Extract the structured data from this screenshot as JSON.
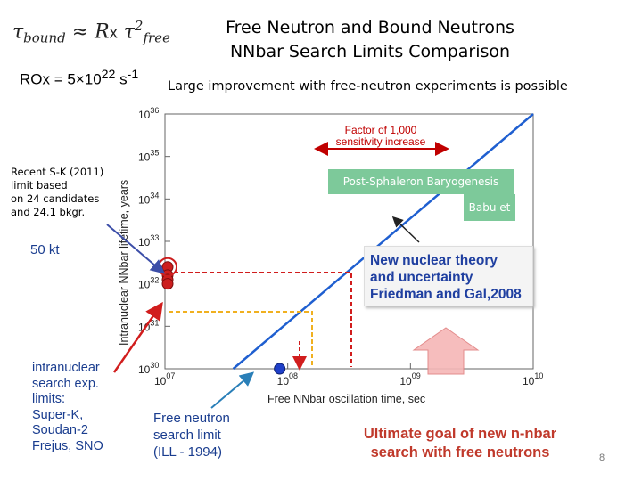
{
  "header": {
    "formula_lhs": "τ",
    "formula_lhs_sub": "bound",
    "formula_mid": "≈",
    "formula_r": "R",
    "formula_x": "x",
    "formula_rhs": "τ",
    "formula_rhs_sup": "2",
    "formula_rhs_sub": "free",
    "rox_text": "ROx = 5×10",
    "rox_exp": "22",
    "rox_unit": " s",
    "rox_unit_exp": "-1",
    "title_line1": "Free Neutron and Bound Neutrons",
    "title_line2": "NNbar Search Limits Comparison",
    "subtitle": "Large improvement with free-neutron experiments is possible"
  },
  "annotations": {
    "sk_lines": [
      "Recent S-K (2011)",
      "limit based",
      "on 24 candidates",
      "and 24.1 bkgr."
    ],
    "kt50": "50 kt",
    "intranuclear_lines": [
      "intranuclear",
      "search exp.",
      "limits:",
      "Super-K,",
      "Soudan-2",
      "Frejus, SNO"
    ],
    "free_limit_lines": [
      "Free neutron",
      "search limit",
      "(ILL - 1994)"
    ],
    "ultimate_lines": [
      "Ultimate goal of new n-nbar",
      "search with free neutrons"
    ],
    "factor_line1": "Factor of 1,000",
    "factor_line2": "sensitivity increase",
    "post_sphaleron": "Post-Sphaleron Baryogenesis",
    "babu": "Babu et al",
    "theory_lines": [
      "New nuclear theory",
      "and uncertainty",
      "Friedman and Gal,2008"
    ],
    "page_number": "8"
  },
  "colors": {
    "line": "#1f5fd0",
    "bound_marker": "#cc1e1e",
    "free_marker": "#1f3fc8",
    "dashed_red": "#d11d1d",
    "dashed_orange": "#f0b020",
    "accent_box": "#7dc99a",
    "arrow_pink": "#f6b6b6"
  },
  "chart_data": {
    "type": "line",
    "xlabel": "Free NNbar oscillation time, sec",
    "ylabel": "Intranuclear NNbar lifetime, years",
    "xscale": "log",
    "yscale": "log",
    "xlim": [
      10000000.0,
      10000000000.0
    ],
    "ylim": [
      1e+30,
      1e+36
    ],
    "x_ticks": [
      {
        "base": "10",
        "exp": "07"
      },
      {
        "base": "10",
        "exp": "08"
      },
      {
        "base": "10",
        "exp": "09"
      },
      {
        "base": "10",
        "exp": "10"
      }
    ],
    "y_ticks": [
      {
        "base": "10",
        "exp": "30"
      },
      {
        "base": "10",
        "exp": "31"
      },
      {
        "base": "10",
        "exp": "32"
      },
      {
        "base": "10",
        "exp": "33"
      },
      {
        "base": "10",
        "exp": "34"
      },
      {
        "base": "10",
        "exp": "35"
      },
      {
        "base": "10",
        "exp": "36"
      }
    ],
    "series": [
      {
        "x": [
          36000000.0,
          10000000000.0
        ],
        "y": [
          1e+30,
          1e+36
        ]
      }
    ],
    "bound_limits_y": [
      2.5e+32,
      1.6e+32,
      1.25e+32,
      1e+32
    ],
    "free_limit": {
      "x": 86000000.0,
      "y": 1e+30
    },
    "grid": false
  }
}
